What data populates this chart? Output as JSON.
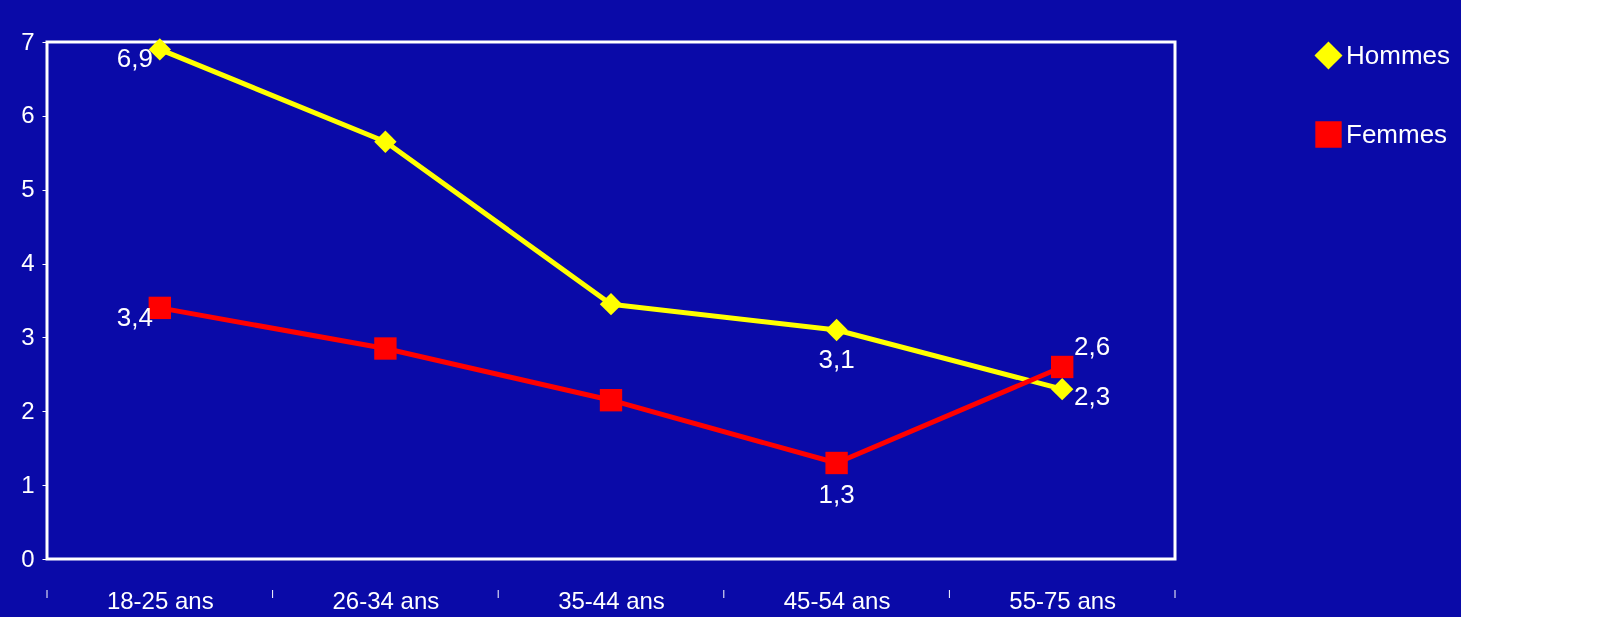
{
  "chart_data": {
    "type": "line",
    "categories": [
      "18-25 ans",
      "26-34 ans",
      "35-44 ans",
      "45-54 ans",
      "55-75 ans"
    ],
    "series": [
      {
        "name": "Hommes",
        "color": "#ffff00",
        "marker": "diamond",
        "values": [
          6.9,
          5.65,
          3.45,
          3.1,
          2.3
        ],
        "value_labels": [
          "6,9",
          null,
          null,
          "3,1",
          "2,3"
        ]
      },
      {
        "name": "Femmes",
        "color": "#ff0000",
        "marker": "square",
        "values": [
          3.4,
          2.85,
          2.15,
          1.3,
          2.6
        ],
        "value_labels": [
          "3,4",
          null,
          null,
          "1,3",
          "2,6"
        ]
      }
    ],
    "ylim": [
      0,
      7
    ],
    "yticks": [
      0,
      1,
      2,
      3,
      4,
      5,
      6,
      7
    ],
    "grid": false,
    "legend": "right"
  }
}
